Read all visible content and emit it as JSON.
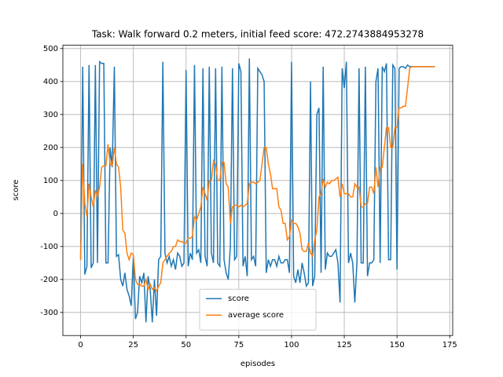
{
  "chart_data": {
    "type": "line",
    "title": "Task: Walk forward 0.2 meters, initial feed score: 472.2743884953278",
    "xlabel": "episodes",
    "ylabel": "score",
    "x": [
      0,
      1,
      2,
      3,
      4,
      5,
      6,
      7,
      8,
      9,
      10,
      11,
      12,
      13,
      14,
      15,
      16,
      17,
      18,
      19,
      20,
      21,
      22,
      23,
      24,
      25,
      26,
      27,
      28,
      29,
      30,
      31,
      32,
      33,
      34,
      35,
      36,
      37,
      38,
      39,
      40,
      41,
      42,
      43,
      44,
      45,
      46,
      47,
      48,
      49,
      50,
      51,
      52,
      53,
      54,
      55,
      56,
      57,
      58,
      59,
      60,
      61,
      62,
      63,
      64,
      65,
      66,
      67,
      68,
      69,
      70,
      71,
      72,
      73,
      74,
      75,
      76,
      77,
      78,
      79,
      80,
      81,
      82,
      83,
      84,
      85,
      86,
      87,
      88,
      89,
      90,
      91,
      92,
      93,
      94,
      95,
      96,
      97,
      98,
      99,
      100,
      101,
      102,
      103,
      104,
      105,
      106,
      107,
      108,
      109,
      110,
      111,
      112,
      113,
      114,
      115,
      116,
      117,
      118,
      119,
      120,
      121,
      122,
      123,
      124,
      125,
      126,
      127,
      128,
      129,
      130,
      131,
      132,
      133,
      134,
      135,
      136,
      137,
      138,
      139,
      140,
      141,
      142,
      143,
      144,
      145,
      146,
      147,
      148,
      149,
      150,
      151,
      152,
      153,
      154,
      155,
      156,
      157,
      158,
      159,
      160,
      161,
      162,
      163,
      164,
      165,
      166,
      167,
      168
    ],
    "series": [
      {
        "name": "score",
        "color": "#1f77b4",
        "values": [
          -140,
          445,
          -185,
          -160,
          450,
          -165,
          -150,
          450,
          -150,
          460,
          455,
          455,
          -150,
          -150,
          200,
          140,
          445,
          -130,
          -125,
          -200,
          -220,
          -180,
          -230,
          -250,
          -280,
          -130,
          -320,
          -300,
          -190,
          -210,
          -180,
          -330,
          -190,
          -230,
          -330,
          -200,
          -310,
          -140,
          -130,
          460,
          -120,
          -150,
          -130,
          -160,
          -140,
          -170,
          -120,
          -130,
          -160,
          -150,
          435,
          -160,
          -120,
          -140,
          450,
          -120,
          -110,
          -150,
          440,
          -130,
          -160,
          445,
          -120,
          -150,
          440,
          -150,
          -160,
          445,
          -140,
          -180,
          -200,
          -100,
          440,
          -140,
          -130,
          455,
          430,
          -160,
          -130,
          -190,
          470,
          -140,
          -130,
          -160,
          440,
          430,
          420,
          400,
          -180,
          -140,
          -160,
          -140,
          -140,
          -160,
          -130,
          -150,
          -150,
          -140,
          -140,
          -180,
          460,
          -190,
          -210,
          -170,
          -210,
          -150,
          -180,
          -220,
          -210,
          400,
          -220,
          -190,
          300,
          320,
          -180,
          445,
          -170,
          -120,
          -130,
          -130,
          -120,
          -110,
          -150,
          -270,
          440,
          380,
          460,
          -150,
          -120,
          -150,
          -270,
          -150,
          440,
          -150,
          -150,
          445,
          -190,
          -150,
          -150,
          -140,
          400,
          440,
          -150,
          445,
          430,
          455,
          -140,
          -140,
          450,
          440,
          -170,
          440,
          445,
          445,
          440,
          450,
          445,
          445,
          445,
          445,
          445,
          445,
          445,
          445,
          445,
          445,
          445,
          445,
          445
        ]
      },
      {
        "name": "average score",
        "color": "#ff7f0e",
        "values": [
          -140,
          150,
          30,
          -10,
          90,
          50,
          20,
          70,
          50,
          80,
          140,
          145,
          145,
          210,
          150,
          145,
          200,
          150,
          140,
          80,
          -50,
          -60,
          -120,
          -140,
          -120,
          -125,
          -200,
          -215,
          -215,
          -220,
          -220,
          -200,
          -230,
          -215,
          -230,
          -225,
          -235,
          -220,
          -210,
          -150,
          -140,
          -130,
          -120,
          -115,
          -100,
          -100,
          -80,
          -85,
          -85,
          -90,
          -90,
          -75,
          -75,
          -70,
          -10,
          -20,
          0,
          20,
          80,
          60,
          40,
          100,
          100,
          160,
          150,
          100,
          100,
          155,
          155,
          90,
          80,
          -30,
          20,
          25,
          25,
          20,
          25,
          20,
          25,
          30,
          90,
          95,
          95,
          90,
          95,
          100,
          150,
          200,
          200,
          150,
          120,
          75,
          75,
          75,
          20,
          10,
          -30,
          -30,
          -80,
          -70,
          -20,
          -30,
          -30,
          -40,
          -60,
          -110,
          -115,
          -115,
          -90,
          -120,
          -130,
          -80,
          -50,
          50,
          60,
          105,
          80,
          95,
          90,
          100,
          100,
          105,
          110,
          50,
          90,
          60,
          60,
          60,
          50,
          50,
          90,
          80,
          80,
          20,
          20,
          30,
          30,
          80,
          80,
          60,
          140,
          80,
          140,
          140,
          200,
          260,
          260,
          200,
          200,
          260,
          260,
          320,
          320,
          325,
          325,
          380,
          440,
          445,
          445,
          445,
          445,
          445,
          445,
          445,
          445,
          445,
          445,
          445,
          445
        ]
      }
    ],
    "xlim": [
      -8.4,
      176.4
    ],
    "ylim": [
      -370,
      510
    ],
    "xticks": [
      0,
      25,
      50,
      75,
      100,
      125,
      150,
      175
    ],
    "yticks": [
      -300,
      -200,
      -100,
      0,
      100,
      200,
      300,
      400,
      500
    ],
    "grid": true,
    "legend": "lower center"
  }
}
